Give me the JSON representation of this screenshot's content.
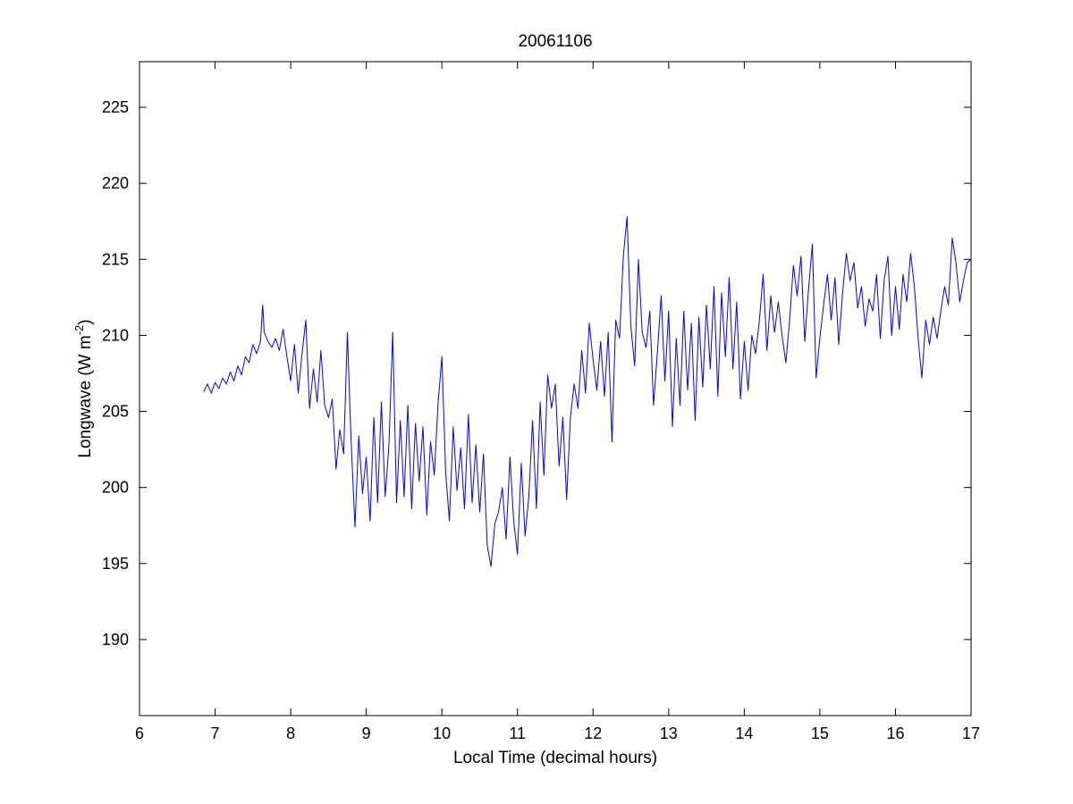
{
  "chart_data": {
    "type": "line",
    "title": "20061106",
    "xlabel": "Local Time (decimal hours)",
    "ylabel_main": "Longwave (W m",
    "ylabel_sup": "-2",
    "ylabel_close": ")",
    "xlim": [
      6,
      17
    ],
    "ylim": [
      185,
      228
    ],
    "xticks": [
      6,
      7,
      8,
      9,
      10,
      11,
      12,
      13,
      14,
      15,
      16,
      17
    ],
    "yticks": [
      190,
      195,
      200,
      205,
      210,
      215,
      220,
      225
    ],
    "grid": false,
    "legend": "none",
    "series": [
      {
        "color": "#0000ff",
        "x": [
          6.85,
          6.9,
          6.95,
          7.0,
          7.05,
          7.1,
          7.15,
          7.2,
          7.25,
          7.3,
          7.35,
          7.4,
          7.45,
          7.5,
          7.55,
          7.6,
          7.63,
          7.65,
          7.7,
          7.75,
          7.8,
          7.85,
          7.9,
          7.95,
          8.0,
          8.05,
          8.1,
          8.15,
          8.2,
          8.25,
          8.3,
          8.35,
          8.4,
          8.45,
          8.5,
          8.55,
          8.6,
          8.65,
          8.7,
          8.75,
          8.8,
          8.85,
          8.9,
          8.95,
          9.0,
          9.05,
          9.1,
          9.15,
          9.2,
          9.25,
          9.3,
          9.35,
          9.4,
          9.45,
          9.5,
          9.55,
          9.6,
          9.65,
          9.7,
          9.75,
          9.8,
          9.85,
          9.9,
          9.95,
          10.0,
          10.05,
          10.1,
          10.15,
          10.2,
          10.25,
          10.3,
          10.35,
          10.4,
          10.45,
          10.5,
          10.55,
          10.6,
          10.65,
          10.7,
          10.75,
          10.8,
          10.85,
          10.9,
          10.95,
          11.0,
          11.05,
          11.1,
          11.15,
          11.2,
          11.25,
          11.3,
          11.35,
          11.4,
          11.45,
          11.5,
          11.55,
          11.6,
          11.65,
          11.7,
          11.75,
          11.8,
          11.85,
          11.9,
          11.95,
          12.0,
          12.05,
          12.1,
          12.15,
          12.2,
          12.25,
          12.3,
          12.35,
          12.4,
          12.45,
          12.5,
          12.55,
          12.6,
          12.65,
          12.7,
          12.75,
          12.8,
          12.85,
          12.9,
          12.95,
          13.0,
          13.05,
          13.1,
          13.15,
          13.2,
          13.25,
          13.3,
          13.35,
          13.4,
          13.45,
          13.5,
          13.55,
          13.6,
          13.65,
          13.7,
          13.75,
          13.8,
          13.85,
          13.9,
          13.95,
          14.0,
          14.05,
          14.1,
          14.15,
          14.2,
          14.25,
          14.3,
          14.35,
          14.4,
          14.45,
          14.5,
          14.55,
          14.6,
          14.65,
          14.7,
          14.75,
          14.8,
          14.85,
          14.9,
          14.95,
          15.0,
          15.05,
          15.1,
          15.15,
          15.2,
          15.25,
          15.3,
          15.35,
          15.4,
          15.45,
          15.5,
          15.55,
          15.6,
          15.65,
          15.7,
          15.75,
          15.8,
          15.85,
          15.9,
          15.95,
          16.0,
          16.05,
          16.1,
          16.15,
          16.2,
          16.25,
          16.3,
          16.35,
          16.4,
          16.45,
          16.5,
          16.55,
          16.6,
          16.65,
          16.7,
          16.75,
          16.8,
          16.85,
          16.9,
          16.95,
          17.0
        ],
        "y": [
          206.3,
          206.8,
          206.2,
          206.9,
          206.5,
          207.2,
          206.8,
          207.6,
          207.0,
          208.0,
          207.4,
          208.6,
          208.2,
          209.4,
          208.8,
          209.6,
          212.0,
          210.2,
          209.6,
          209.2,
          209.8,
          209.0,
          210.4,
          208.6,
          207.0,
          209.4,
          206.2,
          208.8,
          211.0,
          205.2,
          207.8,
          205.6,
          209.0,
          205.4,
          204.6,
          205.8,
          201.2,
          203.8,
          202.2,
          210.2,
          203.0,
          197.4,
          203.4,
          199.6,
          202.0,
          197.8,
          204.6,
          199.0,
          205.6,
          199.4,
          202.8,
          210.2,
          199.0,
          204.4,
          199.4,
          205.4,
          198.6,
          204.2,
          200.4,
          204.0,
          198.2,
          203.0,
          200.8,
          205.6,
          208.6,
          201.0,
          197.8,
          204.0,
          199.8,
          202.6,
          198.6,
          204.8,
          199.0,
          202.8,
          198.4,
          202.2,
          196.2,
          194.8,
          197.6,
          198.4,
          200.0,
          196.6,
          202.0,
          197.8,
          195.6,
          201.6,
          196.8,
          199.4,
          204.4,
          198.6,
          205.6,
          200.8,
          207.4,
          205.2,
          206.8,
          201.4,
          204.6,
          199.2,
          204.6,
          206.8,
          205.2,
          209.0,
          206.2,
          210.8,
          208.4,
          206.4,
          209.6,
          206.0,
          210.2,
          203.0,
          211.0,
          209.8,
          215.2,
          217.8,
          210.6,
          208.0,
          215.0,
          210.2,
          209.2,
          211.6,
          205.4,
          208.8,
          212.6,
          207.0,
          211.6,
          204.0,
          209.8,
          205.4,
          211.6,
          206.4,
          210.8,
          204.4,
          211.2,
          206.6,
          212.0,
          207.8,
          213.2,
          206.0,
          212.8,
          208.6,
          213.8,
          207.8,
          212.2,
          205.8,
          209.6,
          206.4,
          210.0,
          208.8,
          211.0,
          214.0,
          209.0,
          212.6,
          210.2,
          212.2,
          210.0,
          208.2,
          211.0,
          214.6,
          212.6,
          215.2,
          209.6,
          213.0,
          216.0,
          207.2,
          209.8,
          212.0,
          214.0,
          211.0,
          213.8,
          209.4,
          212.8,
          215.4,
          213.6,
          214.8,
          211.8,
          213.2,
          210.6,
          212.4,
          211.6,
          214.0,
          209.8,
          213.6,
          215.2,
          210.0,
          213.2,
          210.4,
          214.0,
          212.2,
          215.4,
          213.2,
          209.8,
          207.2,
          211.0,
          209.4,
          211.2,
          209.8,
          211.6,
          213.2,
          212.0,
          216.4,
          214.8,
          212.2,
          213.6,
          214.8,
          215.0
        ]
      }
    ]
  }
}
